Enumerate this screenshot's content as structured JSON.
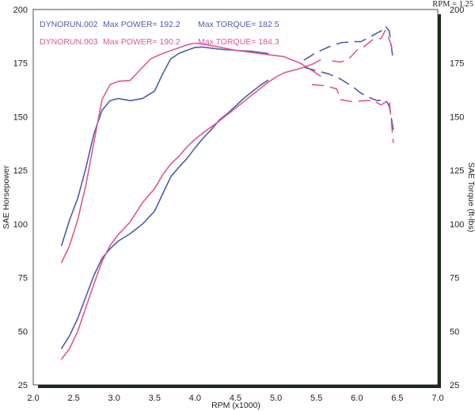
{
  "chart_data": {
    "type": "line",
    "xlabel": "RPM (x1000)",
    "ylabel_left": "SAE Horsepower",
    "ylabel_right": "SAE Torque (ft-lbs)",
    "note": "RPM = 1.25",
    "xlim": [
      2.0,
      7.0
    ],
    "ylim_left": [
      25,
      200
    ],
    "ylim_right": [
      25,
      200
    ],
    "x_ticks": [
      "2.0",
      "2.5",
      "3.0",
      "3.5",
      "4.0",
      "4.5",
      "5.0",
      "5.5",
      "6.0",
      "6.5",
      "7.0"
    ],
    "y_ticks_left": [
      "25",
      "50",
      "75",
      "100",
      "125",
      "150",
      "175",
      "200"
    ],
    "y_ticks_right": [
      "25",
      "50",
      "75",
      "100",
      "125",
      "150",
      "175",
      "200"
    ],
    "grid": false,
    "legend": [
      {
        "run": "DYNORUN.002",
        "power_label": "Max POWER= 192.2",
        "torque_label": "Max TORQUE= 182.5",
        "color": "#4a5ea8"
      },
      {
        "run": "DYNORUN.003",
        "power_label": "Max POWER= 190.2",
        "torque_label": "Max TORQUE= 184.3",
        "color": "#e0559a"
      }
    ],
    "series": [
      {
        "name": "DYNORUN.002",
        "quantity": "torque",
        "color": "#4a5ea8",
        "dashed": false,
        "points": [
          [
            2.35,
            90
          ],
          [
            2.45,
            102
          ],
          [
            2.55,
            112
          ],
          [
            2.65,
            126
          ],
          [
            2.75,
            142
          ],
          [
            2.85,
            153
          ],
          [
            2.95,
            157.5
          ],
          [
            3.05,
            158.5
          ],
          [
            3.2,
            157.5
          ],
          [
            3.35,
            158.5
          ],
          [
            3.5,
            162
          ],
          [
            3.6,
            170
          ],
          [
            3.7,
            177
          ],
          [
            3.8,
            179.5
          ],
          [
            3.9,
            181
          ],
          [
            4.0,
            182.3
          ],
          [
            4.1,
            182.5
          ],
          [
            4.2,
            182
          ],
          [
            4.3,
            181.5
          ],
          [
            4.5,
            181
          ],
          [
            4.7,
            180.5
          ],
          [
            4.9,
            179.5
          ]
        ]
      },
      {
        "name": "DYNORUN.003",
        "quantity": "torque",
        "color": "#e0559a",
        "dashed": false,
        "points": [
          [
            2.35,
            82
          ],
          [
            2.45,
            90
          ],
          [
            2.55,
            102
          ],
          [
            2.65,
            118
          ],
          [
            2.75,
            138
          ],
          [
            2.85,
            158
          ],
          [
            2.95,
            165
          ],
          [
            3.05,
            166.5
          ],
          [
            3.2,
            167
          ],
          [
            3.3,
            171
          ],
          [
            3.45,
            177
          ],
          [
            3.6,
            179.5
          ],
          [
            3.75,
            181.5
          ],
          [
            3.9,
            183.5
          ],
          [
            4.0,
            184.3
          ],
          [
            4.15,
            183.5
          ],
          [
            4.3,
            182.5
          ],
          [
            4.5,
            181
          ],
          [
            4.7,
            180
          ],
          [
            4.9,
            179
          ],
          [
            5.1,
            178
          ],
          [
            5.3,
            175
          ],
          [
            5.45,
            171.5
          ],
          [
            5.55,
            169
          ]
        ]
      },
      {
        "name": "DYNORUN.002",
        "quantity": "torque",
        "color": "#4a5ea8",
        "dashed": true,
        "points": [
          [
            5.35,
            173
          ],
          [
            5.5,
            171.5
          ],
          [
            5.65,
            170
          ],
          [
            5.8,
            167.5
          ],
          [
            5.95,
            164
          ],
          [
            6.05,
            161
          ],
          [
            6.1,
            160
          ],
          [
            6.15,
            159
          ],
          [
            6.25,
            157.5
          ],
          [
            6.35,
            158
          ],
          [
            6.4,
            155
          ],
          [
            6.45,
            144
          ]
        ]
      },
      {
        "name": "DYNORUN.003",
        "quantity": "torque",
        "color": "#e0559a",
        "dashed": true,
        "points": [
          [
            5.45,
            165
          ],
          [
            5.6,
            164.5
          ],
          [
            5.75,
            163
          ],
          [
            5.8,
            158
          ],
          [
            5.95,
            157
          ],
          [
            6.1,
            157.5
          ],
          [
            6.2,
            157.5
          ],
          [
            6.3,
            155.5
          ],
          [
            6.4,
            158
          ],
          [
            6.45,
            138
          ]
        ]
      },
      {
        "name": "DYNORUN.002",
        "quantity": "power",
        "color": "#4a5ea8",
        "dashed": false,
        "points": [
          [
            2.35,
            42
          ],
          [
            2.45,
            48
          ],
          [
            2.55,
            56
          ],
          [
            2.65,
            66
          ],
          [
            2.75,
            76
          ],
          [
            2.85,
            84
          ],
          [
            2.95,
            88.5
          ],
          [
            3.05,
            92
          ],
          [
            3.2,
            95.5
          ],
          [
            3.35,
            100
          ],
          [
            3.5,
            106
          ],
          [
            3.6,
            114
          ],
          [
            3.7,
            122
          ],
          [
            3.8,
            126.5
          ],
          [
            3.9,
            130.5
          ],
          [
            4.0,
            135.5
          ],
          [
            4.1,
            140
          ],
          [
            4.2,
            144
          ],
          [
            4.3,
            148.5
          ],
          [
            4.4,
            151.5
          ],
          [
            4.5,
            155
          ],
          [
            4.6,
            158.5
          ],
          [
            4.7,
            161.5
          ],
          [
            4.8,
            164.5
          ],
          [
            4.9,
            167
          ]
        ]
      },
      {
        "name": "DYNORUN.003",
        "quantity": "power",
        "color": "#e0559a",
        "dashed": false,
        "points": [
          [
            2.35,
            37
          ],
          [
            2.45,
            42
          ],
          [
            2.55,
            50
          ],
          [
            2.65,
            61
          ],
          [
            2.75,
            72
          ],
          [
            2.85,
            82.5
          ],
          [
            2.95,
            90
          ],
          [
            3.05,
            95
          ],
          [
            3.2,
            101
          ],
          [
            3.35,
            110
          ],
          [
            3.5,
            116.5
          ],
          [
            3.6,
            123
          ],
          [
            3.7,
            128
          ],
          [
            3.8,
            131.5
          ],
          [
            3.9,
            136
          ],
          [
            4.0,
            139.5
          ],
          [
            4.1,
            142.5
          ],
          [
            4.3,
            148
          ],
          [
            4.5,
            154
          ],
          [
            4.7,
            160
          ],
          [
            4.9,
            166
          ],
          [
            5.0,
            168.5
          ],
          [
            5.1,
            170.5
          ],
          [
            5.2,
            171.5
          ],
          [
            5.3,
            172.5
          ],
          [
            5.45,
            174.5
          ],
          [
            5.55,
            176.5
          ]
        ]
      },
      {
        "name": "DYNORUN.002",
        "quantity": "power",
        "color": "#4a5ea8",
        "dashed": true,
        "points": [
          [
            5.35,
            176.5
          ],
          [
            5.5,
            180
          ],
          [
            5.65,
            182.5
          ],
          [
            5.8,
            184.5
          ],
          [
            5.95,
            185
          ],
          [
            6.05,
            185
          ],
          [
            6.1,
            186
          ],
          [
            6.2,
            188
          ],
          [
            6.3,
            190
          ],
          [
            6.35,
            192.2
          ],
          [
            6.4,
            190
          ],
          [
            6.45,
            176
          ]
        ]
      },
      {
        "name": "DYNORUN.003",
        "quantity": "power",
        "color": "#e0559a",
        "dashed": true,
        "points": [
          [
            5.7,
            176
          ],
          [
            5.8,
            175.5
          ],
          [
            5.9,
            177
          ],
          [
            6.0,
            181
          ],
          [
            6.1,
            183
          ],
          [
            6.2,
            186
          ],
          [
            6.3,
            186.5
          ],
          [
            6.35,
            190.2
          ],
          [
            6.4,
            186
          ],
          [
            6.45,
            180
          ]
        ]
      }
    ]
  }
}
